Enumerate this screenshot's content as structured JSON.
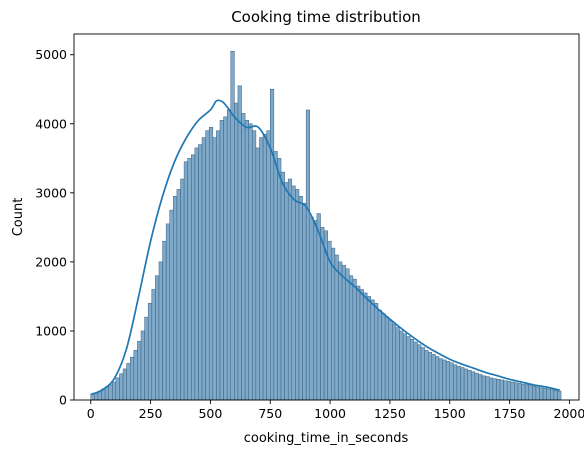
{
  "chart_data": {
    "type": "bar",
    "title": "Cooking time distribution",
    "xlabel": "cooking_time_in_seconds",
    "ylabel": "Count",
    "xlim": [
      -70,
      2040
    ],
    "ylim": [
      0,
      5300
    ],
    "xticks": [
      0,
      250,
      500,
      750,
      1000,
      1250,
      1500,
      1750,
      2000
    ],
    "yticks": [
      0,
      1000,
      2000,
      3000,
      4000,
      5000
    ],
    "grid": false,
    "bin_width": 15,
    "bin_start": 0,
    "bar_color": "#7fa9c9",
    "bar_edge_color": "#3a5f80",
    "kde_color": "#1f77b4",
    "counts": [
      80,
      100,
      130,
      160,
      190,
      220,
      260,
      320,
      380,
      450,
      530,
      620,
      720,
      850,
      1000,
      1200,
      1400,
      1600,
      1800,
      2000,
      2300,
      2550,
      2750,
      2950,
      3050,
      3200,
      3450,
      3500,
      3550,
      3650,
      3700,
      3800,
      3900,
      3950,
      3800,
      3900,
      4050,
      4100,
      4200,
      5050,
      4300,
      4550,
      4150,
      4050,
      4000,
      3900,
      3650,
      3800,
      3850,
      3900,
      4500,
      3600,
      3500,
      3300,
      3150,
      3200,
      3100,
      3050,
      2950,
      2850,
      4200,
      2650,
      2600,
      2700,
      2500,
      2450,
      2300,
      2200,
      2100,
      2000,
      1950,
      1900,
      1800,
      1750,
      1650,
      1600,
      1550,
      1500,
      1450,
      1400,
      1300,
      1250,
      1200,
      1150,
      1100,
      1050,
      1000,
      960,
      920,
      880,
      840,
      800,
      760,
      720,
      690,
      660,
      630,
      600,
      580,
      560,
      540,
      510,
      490,
      470,
      450,
      430,
      410,
      390,
      370,
      350,
      340,
      320,
      310,
      300,
      290,
      280,
      270,
      260,
      250,
      240,
      230,
      220,
      210,
      200,
      190,
      180,
      170,
      160,
      150,
      140,
      130
    ],
    "kde": {
      "x": [
        0,
        50,
        100,
        150,
        200,
        250,
        300,
        350,
        400,
        450,
        500,
        525,
        550,
        575,
        600,
        650,
        700,
        750,
        800,
        850,
        900,
        950,
        1000,
        1050,
        1100,
        1150,
        1200,
        1250,
        1300,
        1350,
        1400,
        1450,
        1500,
        1550,
        1600,
        1650,
        1700,
        1750,
        1800,
        1850,
        1900,
        1950,
        1960
      ],
      "y": [
        80,
        150,
        320,
        750,
        1500,
        2300,
        2950,
        3450,
        3800,
        4050,
        4200,
        4330,
        4320,
        4220,
        4100,
        3950,
        3950,
        3650,
        3150,
        2900,
        2800,
        2450,
        2000,
        1800,
        1650,
        1480,
        1320,
        1170,
        1030,
        900,
        780,
        680,
        590,
        520,
        460,
        400,
        350,
        300,
        260,
        220,
        190,
        150,
        140
      ]
    }
  }
}
